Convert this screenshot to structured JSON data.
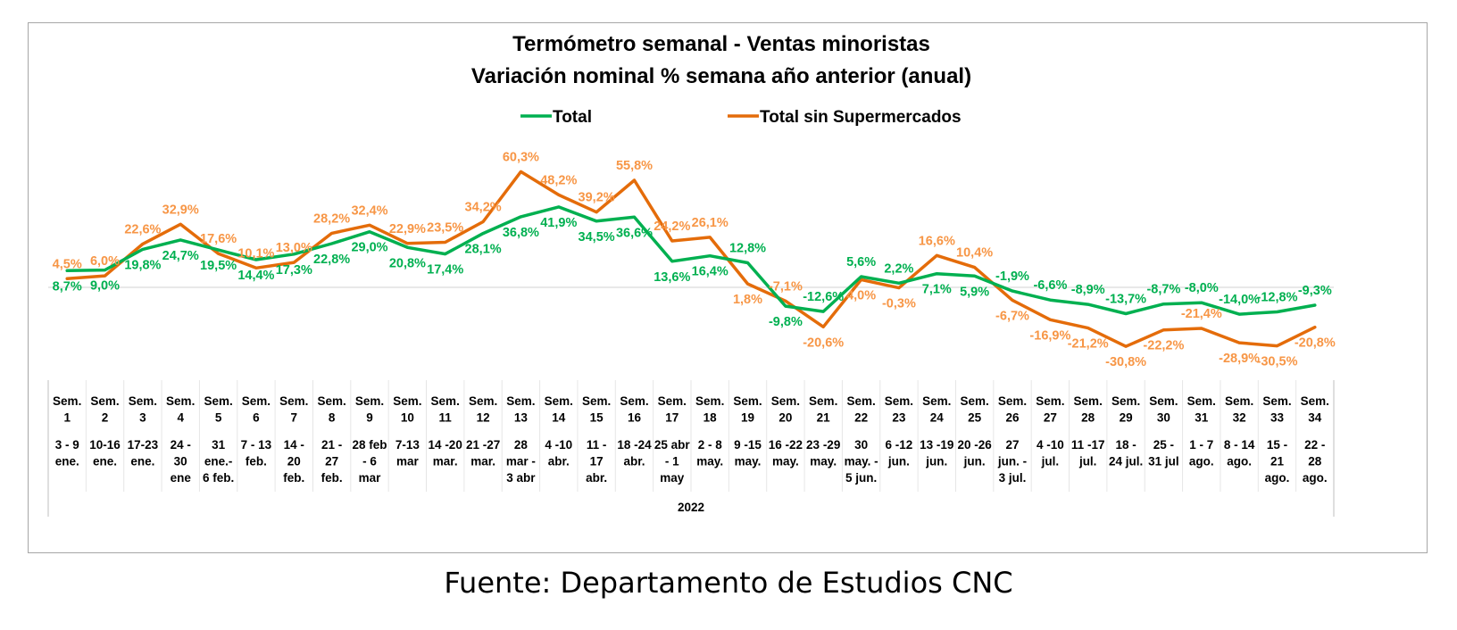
{
  "chart_data": {
    "type": "line",
    "title": "Termómetro semanal - Ventas minoristas",
    "subtitle": "Variación nominal % semana año anterior (anual)",
    "year_label": "2022",
    "legend_position": "top-center",
    "grid": false,
    "ylim": [
      -40,
      70
    ],
    "categories": [
      [
        "Sem.",
        "1",
        "",
        "3 - 9",
        "ene."
      ],
      [
        "Sem.",
        "2",
        "",
        "10-16",
        "ene."
      ],
      [
        "Sem.",
        "3",
        "",
        "17-23",
        "ene."
      ],
      [
        "Sem.",
        "4",
        "",
        "24 -",
        "30",
        "ene"
      ],
      [
        "Sem.",
        "5",
        "",
        "31",
        "ene.-",
        "6 feb."
      ],
      [
        "Sem.",
        "6",
        "",
        "7 - 13",
        "feb."
      ],
      [
        "Sem.",
        "7",
        "",
        "14 -",
        "20",
        "feb."
      ],
      [
        "Sem.",
        "8",
        "",
        "21 -",
        "27",
        "feb."
      ],
      [
        "Sem.",
        "9",
        "",
        "28 feb",
        "- 6",
        "mar"
      ],
      [
        "Sem.",
        "10",
        "",
        "7-13",
        "mar"
      ],
      [
        "Sem.",
        "11",
        "",
        "14 -20",
        "mar."
      ],
      [
        "Sem.",
        "12",
        "",
        "21 -27",
        "mar."
      ],
      [
        "Sem.",
        "13",
        "",
        "28",
        "mar -",
        "3 abr"
      ],
      [
        "Sem.",
        "14",
        "",
        "4 -10",
        "abr."
      ],
      [
        "Sem.",
        "15",
        "",
        "11 -",
        "17",
        "abr."
      ],
      [
        "Sem.",
        "16",
        "",
        "18 -24",
        "abr."
      ],
      [
        "Sem.",
        "17",
        "",
        "25 abr",
        "- 1",
        "may"
      ],
      [
        "Sem.",
        "18",
        "",
        "2 - 8",
        "may."
      ],
      [
        "Sem.",
        "19",
        "",
        "9 -15",
        "may."
      ],
      [
        "Sem.",
        "20",
        "",
        "16 -22",
        "may."
      ],
      [
        "Sem.",
        "21",
        "",
        "23 -29",
        "may."
      ],
      [
        "Sem.",
        "22",
        "",
        "30",
        "may. -",
        "5 jun."
      ],
      [
        "Sem.",
        "23",
        "",
        "6 -12",
        "jun."
      ],
      [
        "Sem.",
        "24",
        "",
        "13 -19",
        "jun."
      ],
      [
        "Sem.",
        "25",
        "",
        "20 -26",
        "jun."
      ],
      [
        "Sem.",
        "26",
        "",
        "27",
        "jun. -",
        "3 jul."
      ],
      [
        "Sem.",
        "27",
        "",
        "4 -10",
        "jul."
      ],
      [
        "Sem.",
        "28",
        "",
        "11 -17",
        "jul."
      ],
      [
        "Sem.",
        "29",
        "",
        "18 -",
        "24 jul."
      ],
      [
        "Sem.",
        "30",
        "",
        "25 -",
        "31 jul"
      ],
      [
        "Sem.",
        "31",
        "",
        "1 - 7",
        "ago."
      ],
      [
        "Sem.",
        "32",
        "",
        "8 - 14",
        "ago."
      ],
      [
        "Sem.",
        "33",
        "",
        "15 -",
        "21",
        "ago."
      ],
      [
        "Sem.",
        "34",
        "",
        "22 -",
        "28",
        "ago."
      ]
    ],
    "series": [
      {
        "name": "Total",
        "color": "#00b050",
        "label_color": "#00b050",
        "values": [
          8.7,
          9.0,
          19.8,
          24.7,
          19.5,
          14.4,
          17.3,
          22.8,
          29.0,
          20.8,
          17.4,
          28.1,
          36.8,
          41.9,
          34.5,
          36.6,
          13.6,
          16.4,
          12.8,
          -9.8,
          -12.6,
          5.6,
          2.2,
          7.1,
          5.9,
          -1.9,
          -6.6,
          -8.9,
          -13.7,
          -8.7,
          -8.0,
          -14.0,
          -12.8,
          -9.3
        ],
        "labels": [
          "8,7%",
          "9,0%",
          "19,8%",
          "24,7%",
          "19,5%",
          "14,4%",
          "17,3%",
          "22,8%",
          "29,0%",
          "20,8%",
          "17,4%",
          "28,1%",
          "36,8%",
          "41,9%",
          "34,5%",
          "36,6%",
          "13,6%",
          "16,4%",
          "12,8%",
          "-9,8%",
          "-12,6%",
          "5,6%",
          "2,2%",
          "7,1%",
          "5,9%",
          "-1,9%",
          "-6,6%",
          "-8,9%",
          "-13,7%",
          "-8,7%",
          "-8,0%",
          "-14,0%",
          "-12,8%",
          "-9,3%"
        ]
      },
      {
        "name": "Total sin Supermercados",
        "color": "#e46c0a",
        "label_color": "#f79646",
        "values": [
          4.5,
          6.0,
          22.6,
          32.9,
          17.6,
          10.1,
          13.0,
          28.2,
          32.4,
          22.9,
          23.5,
          34.2,
          60.3,
          48.2,
          39.2,
          55.8,
          24.2,
          26.1,
          1.8,
          -7.1,
          -20.6,
          4.0,
          -0.3,
          16.6,
          10.4,
          -6.7,
          -16.9,
          -21.2,
          -30.8,
          -22.2,
          -21.4,
          -28.9,
          -30.5,
          -20.8
        ],
        "labels": [
          "4,5%",
          "6,0%",
          "22,6%",
          "32,9%",
          "17,6%",
          "10,1%",
          "13,0%",
          "28,2%",
          "32,4%",
          "22,9%",
          "23,5%",
          "34,2%",
          "60,3%",
          "48,2%",
          "39,2%",
          "55,8%",
          "24,2%",
          "26,1%",
          "1,8%",
          "-7,1%",
          "-20,6%",
          "4,0%",
          "-0,3%",
          "16,6%",
          "10,4%",
          "-6,7%",
          "-16,9%",
          "-21,2%",
          "-30,8%",
          "-22,2%",
          "-21,4%",
          "-28,9%",
          "-30,5%",
          "-20,8%"
        ]
      }
    ]
  },
  "source_text": "Fuente: Departamento de Estudios CNC"
}
